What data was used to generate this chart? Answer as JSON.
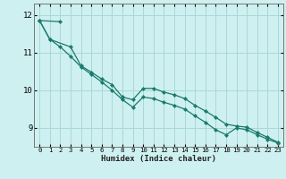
{
  "xlabel": "Humidex (Indice chaleur)",
  "bg_color": "#cff0f0",
  "grid_color": "#a8d8d8",
  "line_color": "#1a7a6e",
  "marker": "D",
  "markersize": 2.2,
  "linewidth": 0.9,
  "xlim": [
    -0.5,
    23.5
  ],
  "ylim": [
    8.5,
    12.3
  ],
  "yticks": [
    9,
    10,
    11,
    12
  ],
  "xticks": [
    0,
    1,
    2,
    3,
    4,
    5,
    6,
    7,
    8,
    9,
    10,
    11,
    12,
    13,
    14,
    15,
    16,
    17,
    18,
    19,
    20,
    21,
    22,
    23
  ],
  "series": [
    [
      11.85,
      11.35,
      null,
      11.15,
      10.65,
      10.48,
      10.3,
      10.15,
      9.82,
      9.75,
      10.05,
      10.05,
      9.95,
      9.88,
      9.78,
      9.6,
      9.45,
      9.28,
      9.1,
      9.05,
      9.02,
      8.88,
      8.75,
      8.62
    ],
    [
      11.85,
      null,
      11.82,
      null,
      null,
      null,
      null,
      null,
      null,
      null,
      null,
      null,
      null,
      null,
      null,
      null,
      null,
      null,
      null,
      null,
      null,
      null,
      null,
      null
    ],
    [
      11.85,
      11.35,
      11.15,
      10.9,
      10.62,
      10.42,
      10.22,
      10.0,
      9.75,
      9.55,
      9.82,
      9.78,
      9.68,
      9.6,
      9.5,
      9.32,
      9.15,
      8.95,
      8.82,
      9.0,
      8.95,
      8.82,
      8.7,
      8.6
    ]
  ]
}
